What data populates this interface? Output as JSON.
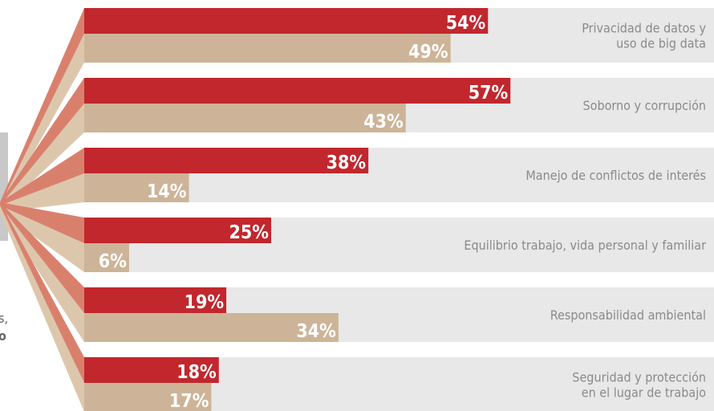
{
  "chart_data": {
    "type": "bar",
    "categories": [
      "Privacidad de datos y\nuso de big data",
      "Soborno y corrupción",
      "Manejo de conflictos de interés",
      "Equilibrio trabajo, vida personal y familiar",
      "Responsabilidad ambiental",
      "Seguridad y protección\nen el lugar de trabajo"
    ],
    "series": [
      {
        "color": "#c1272d",
        "values": [
          54,
          57,
          38,
          25,
          19,
          18
        ],
        "value_labels": [
          "54%",
          "57%",
          "38%",
          "25%",
          "19%",
          "18%"
        ]
      },
      {
        "color": "#cdb498",
        "values": [
          49,
          43,
          14,
          6,
          34,
          17
        ],
        "value_labels": [
          "49%",
          "43%",
          "14%",
          "6%",
          "34%",
          "17%"
        ]
      }
    ],
    "side_text": [
      "s,",
      "o"
    ]
  }
}
